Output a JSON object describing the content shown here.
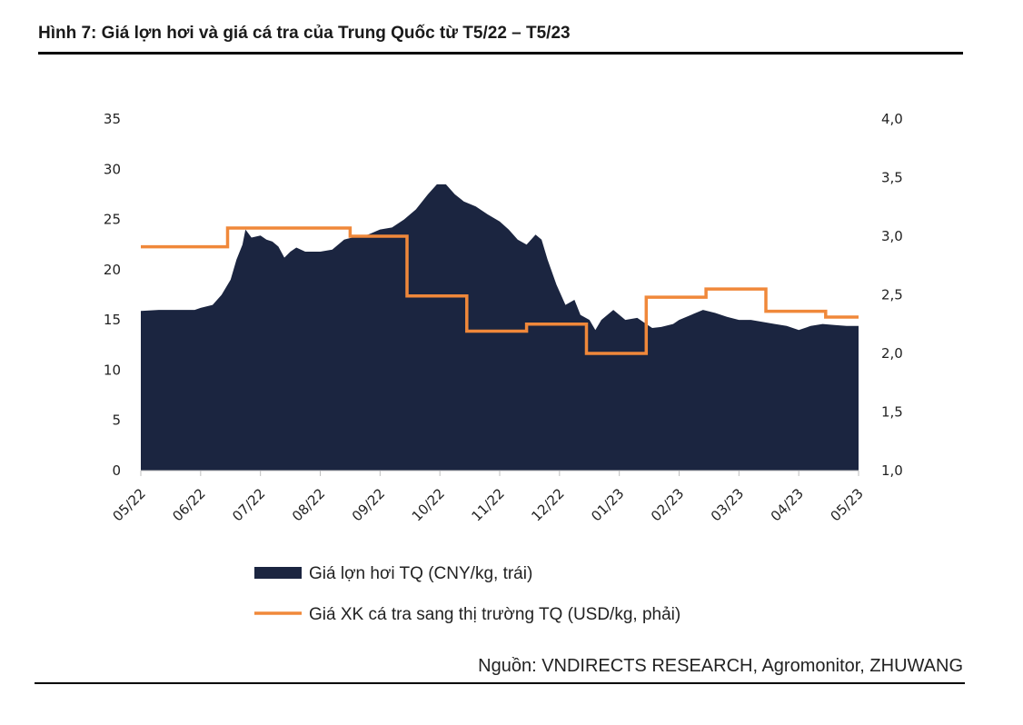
{
  "header": {
    "title": "Hình 7: Giá lợn hơi và giá cá tra của Trung Quốc từ T5/22 – T5/23"
  },
  "footer": {
    "source": "Nguồn: VNDIRECTS RESEARCH, Agromonitor, ZHUWANG"
  },
  "colors": {
    "pork": "#1b2540",
    "fish": "#f0883a",
    "axis": "#bfbfbf"
  },
  "chart_data": {
    "type": "area",
    "title": "Hình 7: Giá lợn hơi và giá cá tra của Trung Quốc từ T5/22 – T5/23",
    "x_ticks": [
      "05/22",
      "06/22",
      "07/22",
      "08/22",
      "09/22",
      "10/22",
      "11/22",
      "12/22",
      "01/23",
      "02/23",
      "03/23",
      "04/23",
      "05/23"
    ],
    "x_range": [
      0,
      12
    ],
    "y_left": {
      "range": [
        0,
        35
      ],
      "ticks": [
        "0",
        "5",
        "10",
        "15",
        "20",
        "25",
        "30",
        "35"
      ]
    },
    "y_right": {
      "range": [
        1.0,
        4.0
      ],
      "ticks": [
        "1,0",
        "1,5",
        "2,0",
        "2,5",
        "3,0",
        "3,5",
        "4,0"
      ]
    },
    "series": [
      {
        "name": "Giá lợn hơi TQ (CNY/kg, trái)",
        "type": "area",
        "axis": "left",
        "points": [
          [
            0.0,
            15.9
          ],
          [
            0.3,
            16.0
          ],
          [
            0.6,
            16.0
          ],
          [
            0.9,
            16.0
          ],
          [
            1.0,
            16.2
          ],
          [
            1.2,
            16.5
          ],
          [
            1.35,
            17.5
          ],
          [
            1.5,
            19.0
          ],
          [
            1.6,
            21.0
          ],
          [
            1.7,
            22.5
          ],
          [
            1.75,
            24.0
          ],
          [
            1.85,
            23.2
          ],
          [
            2.0,
            23.4
          ],
          [
            2.1,
            23.0
          ],
          [
            2.2,
            22.8
          ],
          [
            2.3,
            22.3
          ],
          [
            2.4,
            21.2
          ],
          [
            2.5,
            21.8
          ],
          [
            2.6,
            22.2
          ],
          [
            2.75,
            21.8
          ],
          [
            3.0,
            21.8
          ],
          [
            3.2,
            22.0
          ],
          [
            3.4,
            23.0
          ],
          [
            3.6,
            23.3
          ],
          [
            3.8,
            23.5
          ],
          [
            4.0,
            24.0
          ],
          [
            4.2,
            24.2
          ],
          [
            4.4,
            25.0
          ],
          [
            4.6,
            26.0
          ],
          [
            4.8,
            27.5
          ],
          [
            4.95,
            28.5
          ],
          [
            5.1,
            28.5
          ],
          [
            5.25,
            27.5
          ],
          [
            5.4,
            26.8
          ],
          [
            5.6,
            26.3
          ],
          [
            5.8,
            25.5
          ],
          [
            6.0,
            24.8
          ],
          [
            6.15,
            24.0
          ],
          [
            6.3,
            23.0
          ],
          [
            6.45,
            22.5
          ],
          [
            6.6,
            23.5
          ],
          [
            6.7,
            23.0
          ],
          [
            6.8,
            21.0
          ],
          [
            6.95,
            18.5
          ],
          [
            7.1,
            16.5
          ],
          [
            7.25,
            17.0
          ],
          [
            7.35,
            15.5
          ],
          [
            7.5,
            15.0
          ],
          [
            7.6,
            14.0
          ],
          [
            7.7,
            15.0
          ],
          [
            7.8,
            15.5
          ],
          [
            7.9,
            16.0
          ],
          [
            8.0,
            15.5
          ],
          [
            8.1,
            15.0
          ],
          [
            8.3,
            15.2
          ],
          [
            8.45,
            14.6
          ],
          [
            8.55,
            14.2
          ],
          [
            8.7,
            14.3
          ],
          [
            8.9,
            14.6
          ],
          [
            9.0,
            15.0
          ],
          [
            9.2,
            15.5
          ],
          [
            9.4,
            16.0
          ],
          [
            9.6,
            15.7
          ],
          [
            9.8,
            15.3
          ],
          [
            10.0,
            15.0
          ],
          [
            10.2,
            15.0
          ],
          [
            10.4,
            14.8
          ],
          [
            10.6,
            14.6
          ],
          [
            10.8,
            14.4
          ],
          [
            11.0,
            14.0
          ],
          [
            11.2,
            14.4
          ],
          [
            11.4,
            14.6
          ],
          [
            11.6,
            14.5
          ],
          [
            11.8,
            14.4
          ],
          [
            12.0,
            14.4
          ]
        ]
      },
      {
        "name": "Giá XK cá tra sang thị trường TQ (USD/kg, phải)",
        "type": "step-line",
        "axis": "right",
        "points": [
          [
            0.0,
            2.91
          ],
          [
            1.45,
            2.91
          ],
          [
            1.45,
            3.07
          ],
          [
            3.5,
            3.07
          ],
          [
            3.5,
            3.0
          ],
          [
            4.45,
            3.0
          ],
          [
            4.45,
            2.49
          ],
          [
            5.45,
            2.49
          ],
          [
            5.45,
            2.19
          ],
          [
            6.45,
            2.19
          ],
          [
            6.45,
            2.25
          ],
          [
            7.45,
            2.25
          ],
          [
            7.45,
            2.0
          ],
          [
            8.45,
            2.0
          ],
          [
            8.45,
            2.48
          ],
          [
            9.45,
            2.48
          ],
          [
            9.45,
            2.55
          ],
          [
            10.45,
            2.55
          ],
          [
            10.45,
            2.36
          ],
          [
            11.45,
            2.36
          ],
          [
            11.45,
            2.31
          ],
          [
            12.0,
            2.31
          ]
        ]
      }
    ],
    "legend": [
      {
        "label": "Giá lợn hơi TQ (CNY/kg, trái)",
        "symbol": "area"
      },
      {
        "label": "Giá XK cá tra sang thị trường TQ (USD/kg, phải)",
        "symbol": "line"
      }
    ]
  }
}
